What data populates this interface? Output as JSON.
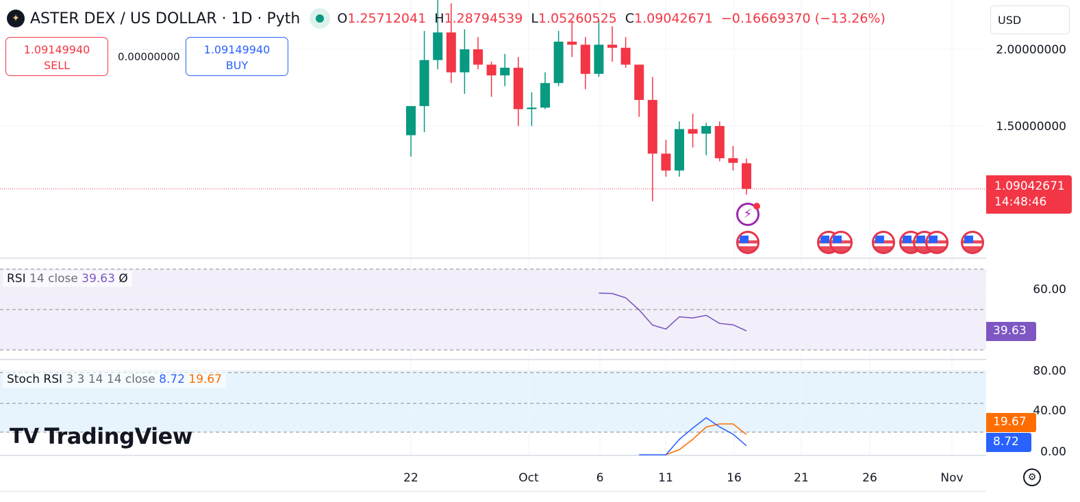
{
  "header": {
    "symbol": "ASTER DEX / US DOLLAR · 1D · Pyth",
    "o_label": "O",
    "o": "1.25712041",
    "h_label": "H",
    "h": "1.28794539",
    "l_label": "L",
    "l": "1.05260525",
    "c_label": "C",
    "c": "1.09042671",
    "change": "−0.16669370 (−13.26%)"
  },
  "trade": {
    "sell_price": "1.09149940",
    "sell_label": "SELL",
    "spread": "0.00000000",
    "buy_price": "1.09149940",
    "buy_label": "BUY"
  },
  "currency": "USD",
  "price_axis": {
    "labels": [
      "2.00000000",
      "1.50000000"
    ],
    "last_price": "1.09042671",
    "countdown": "14:48:46"
  },
  "rsi": {
    "legend_name": "RSI",
    "legend_params": "14 close",
    "value": "39.63",
    "extra": "Ø",
    "axis_label": "60.00",
    "tag": "39.63",
    "color": "#7e57c2"
  },
  "stoch": {
    "legend_name": "Stoch RSI",
    "legend_params": "3 3 14 14 close",
    "k": "8.72",
    "d": "19.67",
    "axis_labels": [
      "80.00",
      "40.00",
      "0.00"
    ],
    "k_color": "#2962ff",
    "d_color": "#ff6d00"
  },
  "time_axis": [
    "22",
    "Oct",
    "6",
    "11",
    "16",
    "21",
    "26",
    "Nov"
  ],
  "brand": "TradingView",
  "colors": {
    "up": "#089981",
    "down": "#f23645"
  },
  "chart_data": {
    "type": "candlestick",
    "dates": [
      "Sep 22",
      "Sep 23",
      "Sep 24",
      "Sep 25",
      "Sep 26",
      "Sep 27",
      "Sep 28",
      "Sep 29",
      "Sep 30",
      "Oct 1",
      "Oct 2",
      "Oct 3",
      "Oct 4",
      "Oct 5",
      "Oct 6",
      "Oct 7",
      "Oct 8",
      "Oct 9",
      "Oct 10",
      "Oct 11",
      "Oct 12",
      "Oct 13",
      "Oct 14",
      "Oct 15",
      "Oct 16",
      "Oct 17"
    ],
    "ohlc": [
      [
        1.44,
        1.63,
        1.3,
        1.63
      ],
      [
        1.63,
        2.12,
        1.46,
        1.93
      ],
      [
        1.93,
        2.35,
        1.87,
        2.11
      ],
      [
        2.11,
        2.3,
        1.78,
        1.85
      ],
      [
        1.85,
        2.13,
        1.71,
        2.0
      ],
      [
        2.0,
        2.08,
        1.87,
        1.9
      ],
      [
        1.9,
        1.92,
        1.69,
        1.83
      ],
      [
        1.83,
        1.97,
        1.76,
        1.88
      ],
      [
        1.88,
        1.95,
        1.5,
        1.61
      ],
      [
        1.61,
        1.72,
        1.5,
        1.62
      ],
      [
        1.62,
        1.85,
        1.61,
        1.78
      ],
      [
        1.78,
        2.12,
        1.76,
        2.05
      ],
      [
        2.05,
        2.19,
        1.95,
        2.03
      ],
      [
        2.03,
        2.08,
        1.74,
        1.84
      ],
      [
        1.84,
        2.19,
        1.82,
        2.03
      ],
      [
        2.03,
        2.15,
        1.92,
        2.01
      ],
      [
        2.01,
        2.08,
        1.88,
        1.9
      ],
      [
        1.9,
        1.9,
        1.56,
        1.67
      ],
      [
        1.67,
        1.82,
        1.01,
        1.32
      ],
      [
        1.32,
        1.41,
        1.17,
        1.21
      ],
      [
        1.21,
        1.53,
        1.17,
        1.48
      ],
      [
        1.48,
        1.58,
        1.36,
        1.45
      ],
      [
        1.45,
        1.52,
        1.31,
        1.5
      ],
      [
        1.5,
        1.53,
        1.27,
        1.29
      ],
      [
        1.29,
        1.37,
        1.21,
        1.26
      ],
      [
        1.25712041,
        1.28794539,
        1.05260525,
        1.09042671
      ]
    ],
    "rsi": {
      "start": "Oct 6",
      "values": [
        58.3,
        58.1,
        56,
        50,
        42.5,
        40.5,
        46.6,
        46,
        47.3,
        43.3,
        42.6,
        39.63
      ]
    },
    "stoch_k": {
      "start": "Oct 9",
      "values": [
        0,
        0,
        0,
        15,
        26,
        36,
        27,
        20,
        8.72
      ]
    },
    "stoch_d": {
      "start": "Oct 11",
      "values": [
        0,
        5,
        15,
        27,
        30,
        30,
        19.67
      ]
    }
  }
}
